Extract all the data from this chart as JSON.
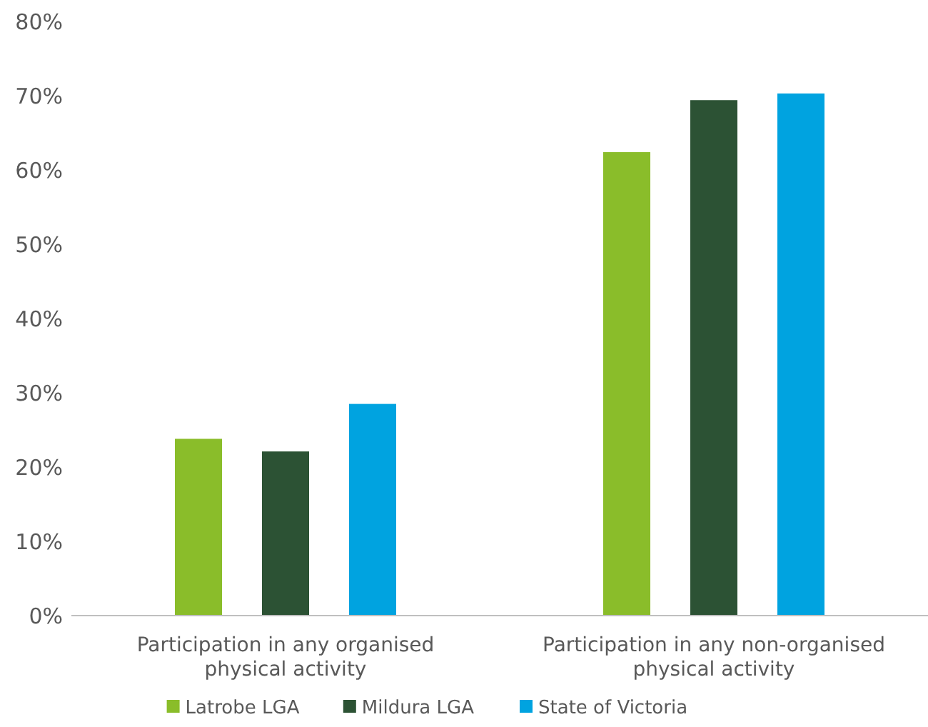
{
  "chart_data": {
    "type": "bar",
    "categories": [
      "Participation in any organised physical activity",
      "Participation in any non-organised physical activity"
    ],
    "series": [
      {
        "name": "Latrobe LGA",
        "color": "#8abd2a",
        "values": [
          23.8,
          62.4
        ]
      },
      {
        "name": "Mildura LGA",
        "color": "#2c5234",
        "values": [
          22.1,
          69.4
        ]
      },
      {
        "name": "State of Victoria",
        "color": "#00a3e0",
        "values": [
          28.5,
          70.3
        ]
      }
    ],
    "ylim": [
      0,
      80
    ],
    "yticks": [
      {
        "value": 0,
        "label": "0%"
      },
      {
        "value": 10,
        "label": "10%"
      },
      {
        "value": 20,
        "label": "20%"
      },
      {
        "value": 30,
        "label": "30%"
      },
      {
        "value": 40,
        "label": "40%"
      },
      {
        "value": 50,
        "label": "50%"
      },
      {
        "value": 60,
        "label": "60%"
      },
      {
        "value": 70,
        "label": "70%"
      },
      {
        "value": 80,
        "label": "80%"
      }
    ],
    "grid": false,
    "legend": "bottom"
  }
}
